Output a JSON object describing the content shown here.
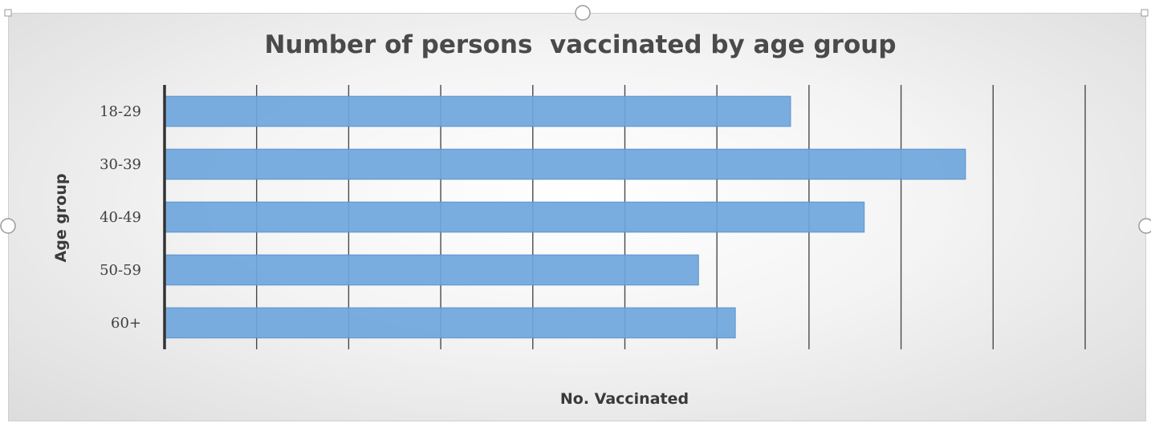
{
  "chart_data": {
    "type": "bar",
    "orientation": "horizontal",
    "title": "Number of persons  vaccinated by age group",
    "xlabel": "No. Vaccinated",
    "ylabel": "Age group",
    "categories": [
      "18-29",
      "30-39",
      "40-49",
      "50-59",
      "60+"
    ],
    "series": [
      {
        "values": [
          6.8,
          8.7,
          7.6,
          5.8,
          6.2
        ]
      }
    ],
    "xlim": [
      0,
      10
    ],
    "grid": true,
    "colors": {
      "bar": "#6fa6dc",
      "bar_edge": "#5b93cc",
      "grid": "#4a4a4a",
      "axis": "#333333"
    }
  }
}
